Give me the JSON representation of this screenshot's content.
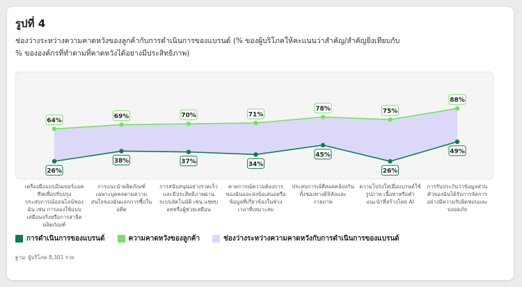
{
  "chart_data": {
    "type": "line",
    "title": "รูปที่ 4",
    "subtitle": "ช่องว่างระหว่างความคาดหวังของลูกค้ากับการดำเนินการของแบรนด์ (% ของผู้บริโภคให้คะแนนว่าสำคัญ/สำคัญยิ่งเทียบกับ % ขององค์กรที่ทำตามที่คาดหวังได้อย่างมีประสิทธิภาพ)",
    "categories": [
      "เครื่องมือแบบอินเทอร์แอคทีฟเพื่อปรับปรุงประสบการณ์ออนไลน์ของฉัน เช่น การลองใช้แบบเสมือนจริงหรือการสาธิตผลิตภัณฑ์",
      "การแนะนำผลิตภัณฑ์เฉพาะบุคคลตามความสนใจของฉันแลกการซื้อในอดีต",
      "การสนับสนุนอย่างรวดเร็วและมีประสิทธิภาพผ่านระบบอัตโนมัติ เช่น แชทบอทหรือผู้ช่วยเสมือน",
      "คาดการณ์ความต้องการของฉันและส่งข้อเสนอหรือข้อมูลที่เกี่ยวข้องในช่วงเวลาที่เหมาะสม",
      "ประสบการณ์ที่สอดคล้องกันทั้งช่องทางดิจิทัลและกายภาพ",
      "ความโปร่งใสเมื่อแบรนด์ใช้รูปภาพ เนื้อหาหรือคำแนะนำที่สร้างโดย AI",
      "การรับประกันว่าข้อมูลส่วนตัวของฉันได้รับการจัดการอย่างมีความรับผิดชอบและปลอดภัย"
    ],
    "series": [
      {
        "name": "การดำเนินการของแบรนด์",
        "color": "#117a50",
        "values": [
          26,
          38,
          37,
          34,
          45,
          26,
          49
        ]
      },
      {
        "name": "ความคาดหวังของลูกค้า",
        "color": "#78dd6a",
        "values": [
          64,
          69,
          70,
          71,
          78,
          75,
          88
        ]
      }
    ],
    "gap_area": {
      "name": "ช่องว่างระหว่างความคาดหวังกับการดำเนินการของแบรนด์",
      "color": "#dcd9f8"
    },
    "ylim": [
      0,
      100
    ],
    "grid": false,
    "legend": "bottom-left"
  },
  "footnote": "ฐาน: ผู้บริโภค 8,301 ราย"
}
